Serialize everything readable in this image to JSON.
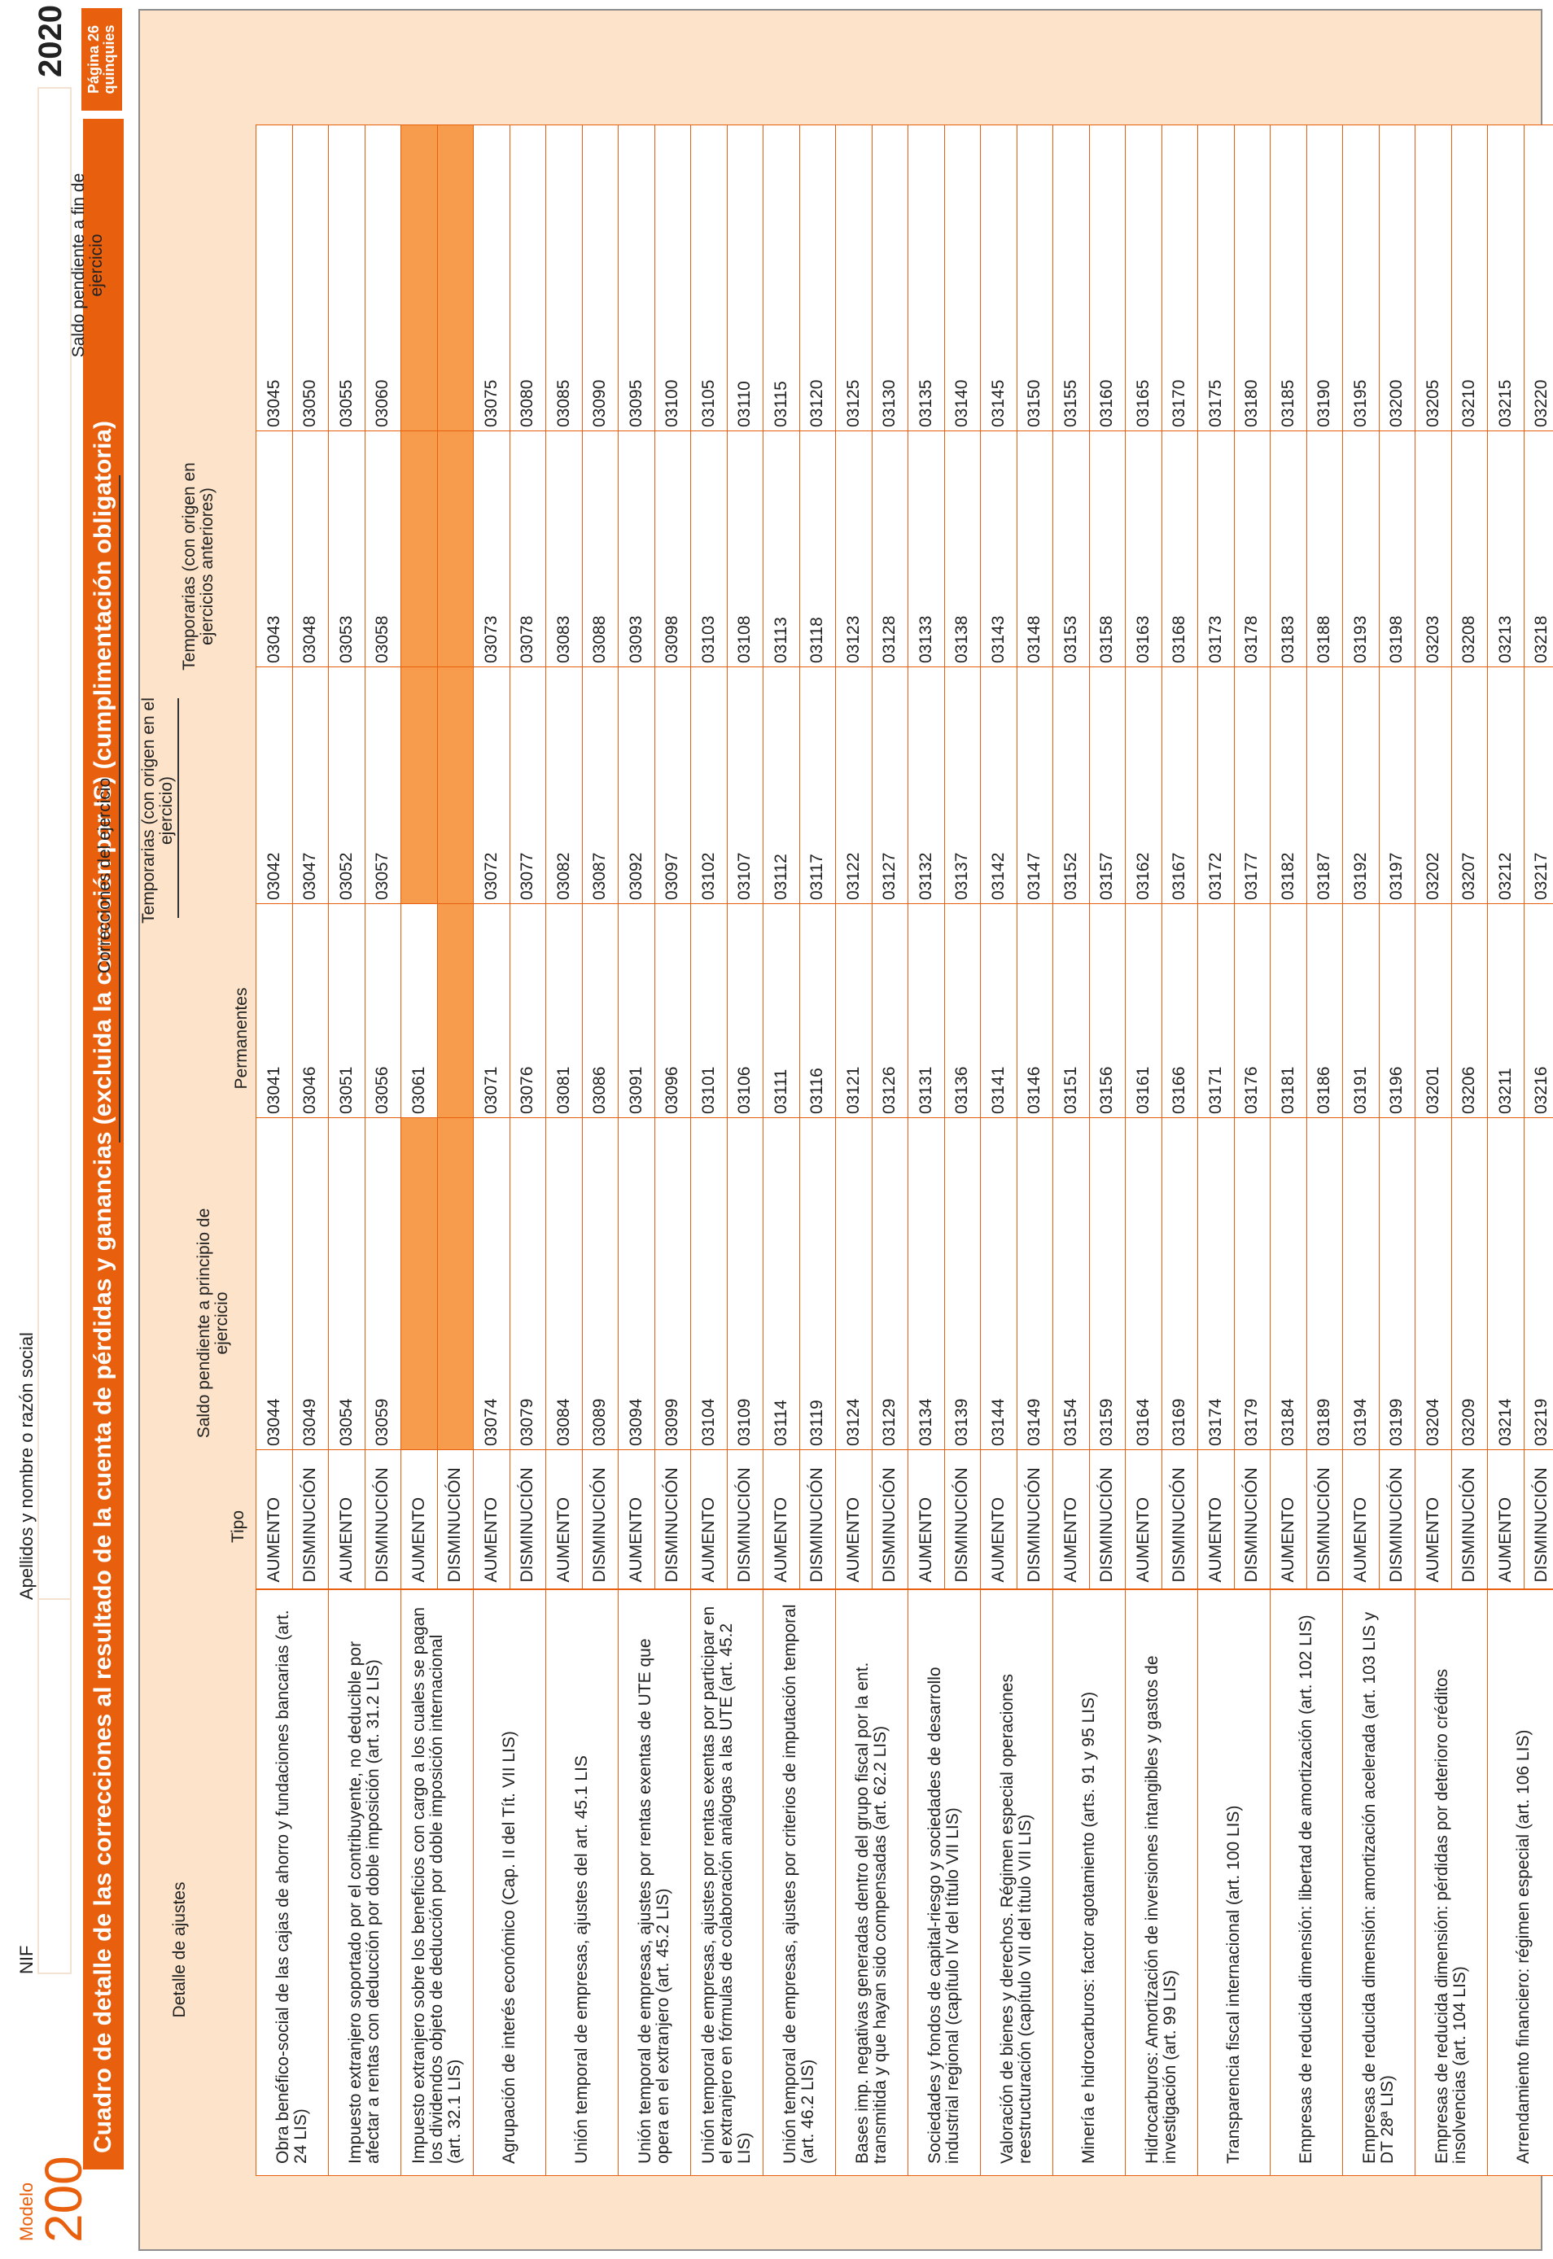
{
  "header": {
    "modelo_label": "Modelo",
    "modelo_number": "200",
    "nif_label": "NIF",
    "name_label": "Apellidos y nombre o razón social",
    "year": "2020",
    "page": "Página 26 quinquies"
  },
  "title": "Cuadro de detalle de las correcciones al resultado de la cuenta de pérdidas y ganancias (excluida la corrección por IS) (cumplimentación obligatoria)",
  "columns": {
    "detalle": "Detalle de ajustes",
    "tipo": "Tipo",
    "saldo_inicio": "Saldo pendiente a principio de ejercicio",
    "correcciones": "Correcciones del ejercicio",
    "permanentes": "Permanentes",
    "temp_ejercicio": "Temporarias (con origen en el ejercicio)",
    "temp_anteriores": "Temporarias (con origen en ejercicios anteriores)",
    "saldo_fin": "Saldo pendiente a fin de ejercicio"
  },
  "tipos": {
    "aumento": "AUMENTO",
    "disminucion": "DISMINUCIÓN"
  },
  "rows": [
    {
      "desc": "Obra benéfico-social de las cajas de ahorro y fundaciones bancarias (art. 24 LIS)",
      "aumento": [
        "03044",
        "03041",
        "03042",
        "03043",
        "03045"
      ],
      "disminucion": [
        "03049",
        "03046",
        "03047",
        "03048",
        "03050"
      ]
    },
    {
      "desc": "Impuesto extranjero soportado por el contribuyente, no deducible por afectar a rentas con deducción por doble imposición (art. 31.2 LIS)",
      "aumento": [
        "03054",
        "03051",
        "03052",
        "03053",
        "03055"
      ],
      "disminucion": [
        "03059",
        "03056",
        "03057",
        "03058",
        "03060"
      ]
    },
    {
      "desc": "Impuesto extranjero sobre los beneficios con cargo a los cuales se pagan los dividendos objeto de deducción por doble imposición internacional (art. 32.1 LIS)",
      "aumento": [
        "",
        "03061",
        "",
        "",
        ""
      ],
      "disminucion": [
        "",
        "",
        "",
        "",
        ""
      ]
    },
    {
      "desc": "Agrupación de interés económico (Cap. II del Tít. VII LIS)",
      "aumento": [
        "03074",
        "03071",
        "03072",
        "03073",
        "03075"
      ],
      "disminucion": [
        "03079",
        "03076",
        "03077",
        "03078",
        "03080"
      ]
    },
    {
      "desc": "Unión temporal de empresas, ajustes del art. 45.1 LIS",
      "aumento": [
        "03084",
        "03081",
        "03082",
        "03083",
        "03085"
      ],
      "disminucion": [
        "03089",
        "03086",
        "03087",
        "03088",
        "03090"
      ]
    },
    {
      "desc": "Unión temporal de empresas, ajustes por rentas exentas de UTE que opera en el extranjero (art. 45.2 LIS)",
      "aumento": [
        "03094",
        "03091",
        "03092",
        "03093",
        "03095"
      ],
      "disminucion": [
        "03099",
        "03096",
        "03097",
        "03098",
        "03100"
      ]
    },
    {
      "desc": "Unión temporal de empresas, ajustes por rentas exentas por participar en el extranjero en fórmulas de colaboración análogas a las UTE (art. 45.2 LIS)",
      "aumento": [
        "03104",
        "03101",
        "03102",
        "03103",
        "03105"
      ],
      "disminucion": [
        "03109",
        "03106",
        "03107",
        "03108",
        "03110"
      ]
    },
    {
      "desc": "Unión temporal de empresas, ajustes por criterios de imputación temporal (art. 46.2 LIS)",
      "aumento": [
        "03114",
        "03111",
        "03112",
        "03113",
        "03115"
      ],
      "disminucion": [
        "03119",
        "03116",
        "03117",
        "03118",
        "03120"
      ]
    },
    {
      "desc": "Bases imp. negativas generadas dentro del grupo fiscal por la ent. transmitida y que hayan sido compensadas (art. 62.2 LIS)",
      "aumento": [
        "03124",
        "03121",
        "03122",
        "03123",
        "03125"
      ],
      "disminucion": [
        "03129",
        "03126",
        "03127",
        "03128",
        "03130"
      ]
    },
    {
      "desc": "Sociedades y fondos de capital-riesgo y sociedades de desarrollo industrial regional (capítulo IV del título VII LIS)",
      "aumento": [
        "03134",
        "03131",
        "03132",
        "03133",
        "03135"
      ],
      "disminucion": [
        "03139",
        "03136",
        "03137",
        "03138",
        "03140"
      ]
    },
    {
      "desc": "Valoración de bienes y derechos. Régimen especial operaciones reestructuración (capítulo VII del título VII LIS)",
      "aumento": [
        "03144",
        "03141",
        "03142",
        "03143",
        "03145"
      ],
      "disminucion": [
        "03149",
        "03146",
        "03147",
        "03148",
        "03150"
      ]
    },
    {
      "desc": "Minería e hidrocarburos: factor agotamiento (arts. 91 y 95 LIS)",
      "aumento": [
        "03154",
        "03151",
        "03152",
        "03153",
        "03155"
      ],
      "disminucion": [
        "03159",
        "03156",
        "03157",
        "03158",
        "03160"
      ]
    },
    {
      "desc": "Hidrocarburos: Amortización de inversiones intangibles y gastos de investigación (art. 99 LIS)",
      "aumento": [
        "03164",
        "03161",
        "03162",
        "03163",
        "03165"
      ],
      "disminucion": [
        "03169",
        "03166",
        "03167",
        "03168",
        "03170"
      ]
    },
    {
      "desc": "Transparencia fiscal internacional (art. 100 LIS)",
      "aumento": [
        "03174",
        "03171",
        "03172",
        "03173",
        "03175"
      ],
      "disminucion": [
        "03179",
        "03176",
        "03177",
        "03178",
        "03180"
      ]
    },
    {
      "desc": "Empresas de reducida dimensión: libertad de amortización (art. 102 LIS)",
      "aumento": [
        "03184",
        "03181",
        "03182",
        "03183",
        "03185"
      ],
      "disminucion": [
        "03189",
        "03186",
        "03187",
        "03188",
        "03190"
      ]
    },
    {
      "desc": "Empresas de reducida dimensión: amortización acelerada (art. 103 LIS y DT 28ª LIS)",
      "aumento": [
        "03194",
        "03191",
        "03192",
        "03193",
        "03195"
      ],
      "disminucion": [
        "03199",
        "03196",
        "03197",
        "03198",
        "03200"
      ]
    },
    {
      "desc": "Empresas de reducida dimensión: pérdidas por deterioro créditos insolvencias (art. 104 LIS)",
      "aumento": [
        "03204",
        "03201",
        "03202",
        "03203",
        "03205"
      ],
      "disminucion": [
        "03209",
        "03206",
        "03207",
        "03208",
        "03210"
      ]
    },
    {
      "desc": "Arrendamiento financiero: régimen especial (art. 106 LIS)",
      "aumento": [
        "03214",
        "03211",
        "03212",
        "03213",
        "03215"
      ],
      "disminucion": [
        "03219",
        "03216",
        "03217",
        "03218",
        "03220"
      ]
    }
  ]
}
